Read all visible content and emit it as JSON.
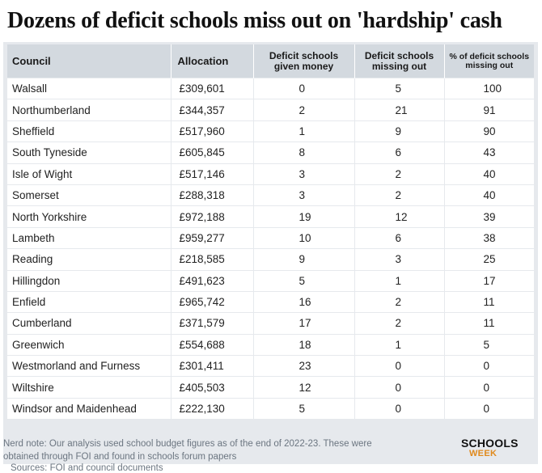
{
  "title": "Dozens of deficit schools miss out on 'hardship' cash",
  "colors": {
    "header_bg": "#d3d9df",
    "card_bg": "#e6e9ed",
    "logo_accent": "#e08a1e"
  },
  "chart_data": {
    "type": "table",
    "title": "Dozens of deficit schools miss out on 'hardship' cash",
    "columns": [
      "Council",
      "Allocation",
      "Deficit schools given money",
      "Deficit schools missing out",
      "% of deficit schools missing out"
    ],
    "rows": [
      [
        "Walsall",
        "£309,601",
        "0",
        "5",
        "100"
      ],
      [
        "Northumberland",
        "£344,357",
        "2",
        "21",
        "91"
      ],
      [
        "Sheffield",
        "£517,960",
        "1",
        "9",
        "90"
      ],
      [
        "South Tyneside",
        "£605,845",
        "8",
        "6",
        "43"
      ],
      [
        "Isle of Wight",
        "£517,146",
        "3",
        "2",
        "40"
      ],
      [
        "Somerset",
        "£288,318",
        "3",
        "2",
        "40"
      ],
      [
        "North Yorkshire",
        "£972,188",
        "19",
        "12",
        "39"
      ],
      [
        "Lambeth",
        "£959,277",
        "10",
        "6",
        "38"
      ],
      [
        "Reading",
        "£218,585",
        "9",
        "3",
        "25"
      ],
      [
        "Hillingdon",
        "£491,623",
        "5",
        "1",
        "17"
      ],
      [
        "Enfield",
        "£965,742",
        "16",
        "2",
        "11"
      ],
      [
        "Cumberland",
        "£371,579",
        "17",
        "2",
        "11"
      ],
      [
        "Greenwich",
        "£554,688",
        "18",
        "1",
        "5"
      ],
      [
        "Westmorland and Furness",
        "£301,411",
        "23",
        "0",
        "0"
      ],
      [
        "Wiltshire",
        "£405,503",
        "12",
        "0",
        "0"
      ],
      [
        "Windsor and Maidenhead",
        "£222,130",
        "5",
        "0",
        "0"
      ]
    ]
  },
  "footer": {
    "sources": "Sources: FOI and council documents",
    "note": "Nerd note: Our analysis used school budget figures as of the end of 2022-23. These were obtained through FOI and found in schools forum papers",
    "logo_top": "SCHOOLS",
    "logo_bottom": "WEEK"
  }
}
